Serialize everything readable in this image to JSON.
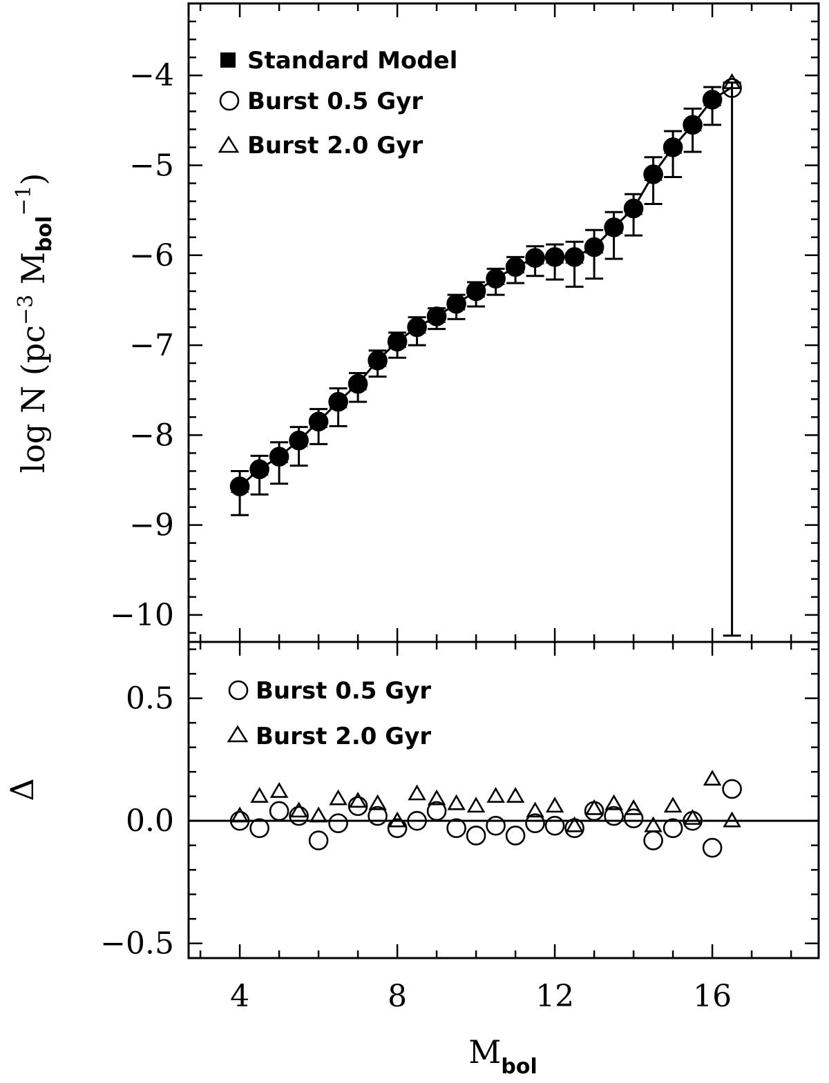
{
  "chart_data": [
    {
      "panel": "top",
      "type": "line",
      "title": "",
      "xlabel": "",
      "ylabel": "log N (pc",
      "ylabel_parts": {
        "main": "log N (pc",
        "sup1": "−3",
        "mid": " M",
        "sub": "bol",
        "sup2": "−1",
        "close": ")"
      },
      "xlim": [
        2.7,
        18.7
      ],
      "ylim": [
        -10.3,
        -3.2
      ],
      "yticks": [
        -10,
        -9,
        -8,
        -7,
        -6,
        -5,
        -4
      ],
      "ytick_labels": [
        "−10",
        "−9",
        "−8",
        "−7",
        "−6",
        "−5",
        "−4"
      ],
      "x": [
        4.0,
        4.5,
        5.0,
        5.5,
        6.0,
        6.5,
        7.0,
        7.5,
        8.0,
        8.5,
        9.0,
        9.5,
        10.0,
        10.5,
        11.0,
        11.5,
        12.0,
        12.5,
        13.0,
        13.5,
        14.0,
        14.5,
        15.0,
        15.5,
        16.0,
        16.5
      ],
      "series": [
        {
          "name": "Standard Model",
          "marker": "filled-circle",
          "values": [
            -8.57,
            -8.38,
            -8.24,
            -8.06,
            -7.85,
            -7.63,
            -7.43,
            -7.17,
            -6.96,
            -6.8,
            -6.68,
            -6.54,
            -6.4,
            -6.26,
            -6.13,
            -6.03,
            -6.02,
            -6.02,
            -5.91,
            -5.69,
            -5.48,
            -5.1,
            -4.8,
            -4.55,
            -4.27,
            -4.13
          ],
          "err_low": [
            0.32,
            0.28,
            0.3,
            0.28,
            0.25,
            0.27,
            0.2,
            0.18,
            0.18,
            0.2,
            0.14,
            0.17,
            0.17,
            0.18,
            0.18,
            0.2,
            0.25,
            0.33,
            0.35,
            0.35,
            0.3,
            0.33,
            0.33,
            0.3,
            0.28,
            6.1
          ],
          "err_high": [
            0.17,
            0.15,
            0.16,
            0.15,
            0.14,
            0.15,
            0.12,
            0.11,
            0.1,
            0.11,
            0.09,
            0.1,
            0.1,
            0.11,
            0.11,
            0.13,
            0.14,
            0.17,
            0.19,
            0.17,
            0.16,
            0.19,
            0.18,
            0.18,
            0.14,
            0.05
          ]
        },
        {
          "name": "Burst 0.5 Gyr",
          "marker": "open-circle",
          "values": [
            -8.57,
            -8.38,
            -8.24,
            -8.06,
            -7.85,
            -7.63,
            -7.43,
            -7.17,
            -6.96,
            -6.8,
            -6.68,
            -6.54,
            -6.4,
            -6.26,
            -6.13,
            -6.03,
            -6.02,
            -6.02,
            -5.91,
            -5.69,
            -5.48,
            -5.1,
            -4.8,
            -4.55,
            -4.27,
            -4.14
          ]
        },
        {
          "name": "Burst 2.0 Gyr",
          "marker": "open-triangle",
          "values": [
            -8.57,
            -8.38,
            -8.24,
            -8.06,
            -7.85,
            -7.63,
            -7.43,
            -7.17,
            -6.96,
            -6.8,
            -6.68,
            -6.54,
            -6.4,
            -6.26,
            -6.13,
            -6.03,
            -6.02,
            -6.02,
            -5.91,
            -5.69,
            -5.48,
            -5.1,
            -4.8,
            -4.55,
            -4.27,
            -4.08
          ]
        }
      ],
      "legend": {
        "position": "top-left",
        "entries": [
          "Standard Model",
          "Burst 0.5 Gyr",
          "Burst 2.0 Gyr"
        ]
      }
    },
    {
      "panel": "bottom",
      "type": "scatter",
      "title": "",
      "xlabel": "M",
      "xlabel_sub": "bol",
      "ylabel": "Δ",
      "xlim": [
        2.7,
        18.7
      ],
      "ylim": [
        -0.56,
        0.73
      ],
      "xticks": [
        4,
        8,
        12,
        16
      ],
      "xtick_labels": [
        "4",
        "8",
        "12",
        "16"
      ],
      "yticks": [
        -0.5,
        0.0,
        0.5
      ],
      "ytick_labels": [
        "−0.5",
        "0.0",
        "0.5"
      ],
      "reference_line": 0.0,
      "series": [
        {
          "name": "Burst 0.5 Gyr",
          "marker": "open-circle",
          "x": [
            4.0,
            4.5,
            5.0,
            5.5,
            6.0,
            6.5,
            7.0,
            7.5,
            8.0,
            8.5,
            9.0,
            9.5,
            10.0,
            10.5,
            11.0,
            11.5,
            12.0,
            12.5,
            13.0,
            13.5,
            14.0,
            14.5,
            15.0,
            15.5,
            16.0,
            16.5
          ],
          "values": [
            0.0,
            -0.03,
            0.04,
            0.02,
            -0.08,
            -0.01,
            0.06,
            0.02,
            -0.03,
            0.0,
            0.04,
            -0.03,
            -0.06,
            -0.02,
            -0.06,
            -0.01,
            -0.02,
            -0.03,
            0.04,
            0.02,
            0.01,
            -0.08,
            -0.03,
            0.0,
            -0.11,
            0.13
          ]
        },
        {
          "name": "Burst 2.0 Gyr",
          "marker": "open-triangle",
          "x": [
            4.0,
            4.5,
            5.0,
            5.5,
            6.0,
            6.5,
            7.0,
            7.5,
            8.0,
            8.5,
            9.0,
            9.5,
            10.0,
            10.5,
            11.0,
            11.5,
            12.0,
            12.5,
            13.0,
            13.5,
            14.0,
            14.5,
            15.0,
            15.5,
            16.0,
            16.5
          ],
          "values": [
            0.02,
            0.1,
            0.12,
            0.04,
            0.02,
            0.09,
            0.08,
            0.07,
            0.0,
            0.11,
            0.09,
            0.07,
            0.06,
            0.1,
            0.1,
            0.04,
            0.06,
            -0.02,
            0.05,
            0.07,
            0.05,
            -0.02,
            0.06,
            0.01,
            0.17,
            0.0
          ]
        }
      ],
      "legend": {
        "position": "top-left",
        "entries": [
          "Burst 0.5 Gyr",
          "Burst 2.0 Gyr"
        ]
      }
    }
  ]
}
